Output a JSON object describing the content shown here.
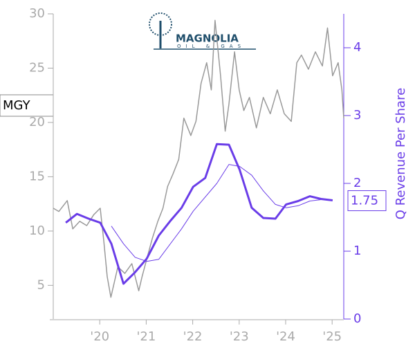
{
  "chart_data": {
    "type": "line",
    "logo": {
      "name": "MAGNOLIA",
      "tagline": "OIL & GAS"
    },
    "ticker": "MGY",
    "y2label": "Q Revenue Per Share",
    "current_value": 1.75,
    "xlim": [
      2019.0,
      2025.25
    ],
    "xticks": [
      {
        "value": 2020,
        "label": "'20"
      },
      {
        "value": 2021,
        "label": "'21"
      },
      {
        "value": 2022,
        "label": "'22"
      },
      {
        "value": 2023,
        "label": "'23"
      },
      {
        "value": 2024,
        "label": "'24"
      },
      {
        "value": 2025,
        "label": "'25"
      }
    ],
    "ylim": [
      1.9,
      30
    ],
    "yticks": [
      5,
      10,
      15,
      20,
      25,
      30
    ],
    "y2lim": [
      0,
      4.5
    ],
    "y2ticks": [
      0,
      1,
      2,
      3,
      4
    ],
    "series": [
      {
        "color": "#999999",
        "axis": "y",
        "x": [
          2019.0,
          2019.12,
          2019.3,
          2019.42,
          2019.57,
          2019.72,
          2019.87,
          2020.01,
          2020.09,
          2020.16,
          2020.24,
          2020.39,
          2020.54,
          2020.69,
          2020.84,
          2020.91,
          2021.01,
          2021.13,
          2021.25,
          2021.36,
          2021.46,
          2021.58,
          2021.7,
          2021.81,
          2021.96,
          2022.07,
          2022.18,
          2022.3,
          2022.4,
          2022.48,
          2022.6,
          2022.7,
          2022.78,
          2022.9,
          2023.0,
          2023.1,
          2023.22,
          2023.37,
          2023.52,
          2023.67,
          2023.82,
          2023.97,
          2024.12,
          2024.24,
          2024.34,
          2024.49,
          2024.64,
          2024.79,
          2024.9,
          2025.01,
          2025.13,
          2025.21,
          2025.25
        ],
        "values": [
          12.1,
          11.8,
          12.8,
          10.2,
          10.9,
          10.5,
          11.5,
          12.1,
          9.0,
          5.8,
          3.9,
          6.7,
          6.1,
          7.0,
          4.5,
          5.8,
          7.4,
          9.3,
          10.9,
          12.1,
          14.1,
          15.3,
          16.6,
          20.4,
          18.8,
          20.1,
          23.6,
          25.5,
          23.0,
          29.4,
          24.3,
          19.2,
          21.7,
          26.5,
          23.0,
          21.1,
          22.3,
          19.5,
          22.3,
          20.8,
          23.0,
          20.8,
          20.1,
          25.5,
          26.2,
          24.9,
          26.5,
          25.2,
          28.7,
          24.3,
          25.5,
          23.0,
          20.4
        ]
      },
      {
        "color": "#6a3de8",
        "axis": "y2",
        "width": 3,
        "x": [
          2019.27,
          2019.51,
          2019.76,
          2020.01,
          2020.25,
          2020.51,
          2020.76,
          2021.01,
          2021.27,
          2021.51,
          2021.76,
          2022.01,
          2022.27,
          2022.52,
          2022.78,
          2023.01,
          2023.27,
          2023.52,
          2023.78,
          2024.01,
          2024.27,
          2024.52,
          2024.76,
          2025.01
        ],
        "values": [
          1.42,
          1.55,
          1.48,
          1.42,
          1.11,
          0.52,
          0.69,
          0.89,
          1.23,
          1.44,
          1.64,
          1.95,
          2.08,
          2.58,
          2.57,
          2.2,
          1.64,
          1.49,
          1.48,
          1.69,
          1.74,
          1.81,
          1.77,
          1.75
        ]
      },
      {
        "color": "#6a3de8",
        "axis": "y2",
        "width": 1,
        "x": [
          2020.25,
          2020.51,
          2020.76,
          2021.01,
          2021.27,
          2021.76,
          2022.01,
          2022.52,
          2022.78,
          2023.01,
          2023.27,
          2023.52,
          2023.78,
          2024.01,
          2024.27,
          2024.52,
          2024.76,
          2025.01
        ],
        "values": [
          1.37,
          1.11,
          0.91,
          0.85,
          0.88,
          1.33,
          1.59,
          2.0,
          2.28,
          2.25,
          2.12,
          1.89,
          1.69,
          1.64,
          1.67,
          1.74,
          1.76,
          1.76
        ]
      }
    ]
  }
}
